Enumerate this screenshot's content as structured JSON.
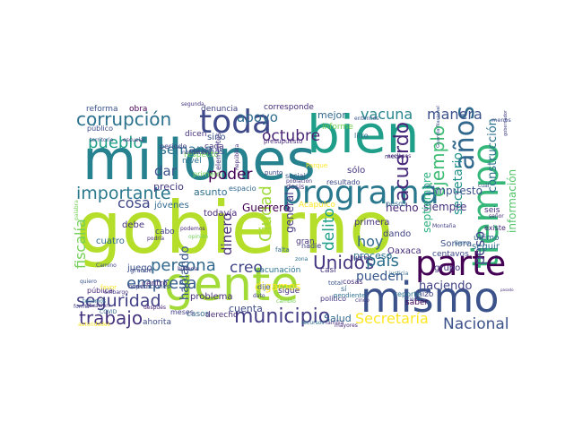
{
  "words": [
    {
      "text": "gobierno",
      "color": "#b5de2b"
    },
    {
      "text": "millones",
      "color": "#26828e"
    },
    {
      "text": "gente",
      "color": "#a2da37"
    },
    {
      "text": "mismo",
      "color": "#3b528b"
    },
    {
      "text": "bien",
      "color": "#1f9e89"
    },
    {
      "text": "programa",
      "color": "#2a788e"
    },
    {
      "text": "tiempo",
      "color": "#35b779"
    },
    {
      "text": "parte",
      "color": "#440154"
    },
    {
      "text": "toda",
      "color": "#3e4a89"
    },
    {
      "text": "años",
      "color": "#31688e"
    },
    {
      "text": "corrupción",
      "color": "#2c728e"
    },
    {
      "text": "municipio",
      "color": "#433e85"
    },
    {
      "text": "importante",
      "color": "#2a788e"
    },
    {
      "text": "acuerdo",
      "color": "#482878"
    },
    {
      "text": "ejemplo",
      "color": "#3dbc74"
    },
    {
      "text": "pueblo",
      "color": "#1f9e89"
    },
    {
      "text": "seguridad",
      "color": "#424086"
    },
    {
      "text": "persona",
      "color": "#31688e"
    },
    {
      "text": "trabajo",
      "color": "#46337e"
    },
    {
      "text": "empresa",
      "color": "#365c8d"
    },
    {
      "text": "Unidos",
      "color": "#453581"
    },
    {
      "text": "país",
      "color": "#2d708e"
    },
    {
      "text": "Secretaría",
      "color": "#fde725"
    },
    {
      "text": "Nacional",
      "color": "#3b528b"
    },
    {
      "text": "octubre",
      "color": "#482475"
    },
    {
      "text": "semana",
      "color": "#2e6e8e"
    },
    {
      "text": "vacuna",
      "color": "#25858e"
    },
    {
      "text": "manera",
      "color": "#3b528b"
    },
    {
      "text": "fiscalía",
      "color": "#73d056"
    },
    {
      "text": "Ciudad",
      "color": "#a0da39"
    },
    {
      "text": "poder",
      "color": "#440154"
    },
    {
      "text": "creo",
      "color": "#414487"
    },
    {
      "text": "dinero",
      "color": "#472d7b"
    },
    {
      "text": "cosa",
      "color": "#3f4788"
    },
    {
      "text": "delito",
      "color": "#1f9f88"
    },
    {
      "text": "hoy",
      "color": "#31688e"
    },
    {
      "text": "peso",
      "color": "#404688"
    },
    {
      "text": "secretario",
      "color": "#21918c"
    },
    {
      "text": "apoyo",
      "color": "#2f6c8e"
    },
    {
      "text": "dar",
      "color": "#3b528b"
    },
    {
      "text": "pueden",
      "color": "#38588c"
    },
    {
      "text": "general",
      "color": "#453581"
    },
    {
      "text": "hecho",
      "color": "#482878"
    },
    {
      "text": "proceso",
      "color": "#2d708e"
    },
    {
      "text": "haciendo",
      "color": "#414487"
    },
    {
      "text": "construcción",
      "color": "#2c728e"
    },
    {
      "text": "información",
      "color": "#52c569"
    },
    {
      "text": "impuesto",
      "color": "#3b528b"
    },
    {
      "text": "siempre",
      "color": "#46337e"
    },
    {
      "text": "septiembre",
      "color": "#29af7f"
    },
    {
      "text": "Guerrero",
      "color": "#440154"
    },
    {
      "text": "hablando",
      "color": "#38588c"
    },
    {
      "text": "digamos",
      "color": "#fde725"
    },
    {
      "text": "cuenta",
      "color": "#3e4a89"
    },
    {
      "text": "Salud",
      "color": "#31688e"
    },
    {
      "text": "problema",
      "color": "#472d7b"
    },
    {
      "text": "precio",
      "color": "#453581"
    },
    {
      "text": "asunto",
      "color": "#2e6e8e"
    },
    {
      "text": "muchas",
      "color": "#3b528b"
    },
    {
      "text": "todavía",
      "color": "#482878"
    },
    {
      "text": "jóvenes",
      "color": "#31688e"
    },
    {
      "text": "cabo",
      "color": "#424086"
    },
    {
      "text": "debe",
      "color": "#46337e"
    },
    {
      "text": "menos",
      "color": "#3e4a89"
    },
    {
      "text": "mejor",
      "color": "#31688e"
    },
    {
      "text": "reforma",
      "color": "#3b528b"
    },
    {
      "text": "obra",
      "color": "#440154"
    },
    {
      "text": "denuncia",
      "color": "#414487"
    },
    {
      "text": "corresponde",
      "color": "#472d7b"
    },
    {
      "text": "sino",
      "color": "#3b528b"
    },
    {
      "text": "cada",
      "color": "#453581"
    },
    {
      "text": "nivel",
      "color": "#2d708e"
    },
    {
      "text": "dicen",
      "color": "#46337e"
    },
    {
      "text": "público",
      "color": "#3e4a89"
    },
    {
      "text": "pública",
      "color": "#482878"
    },
    {
      "text": "cuatro",
      "color": "#31688e"
    },
    {
      "text": "Oaxaca",
      "color": "#472d7b"
    },
    {
      "text": "Sonora",
      "color": "#3b528b"
    },
    {
      "text": "grupo",
      "color": "#453581"
    },
    {
      "text": "seguir",
      "color": "#2e6e8e"
    },
    {
      "text": "primera",
      "color": "#46337e"
    },
    {
      "text": "dando",
      "color": "#414487"
    },
    {
      "text": "juego",
      "color": "#3b528b"
    },
    {
      "text": "centro",
      "color": "#482878"
    },
    {
      "text": "casos",
      "color": "#31688e"
    },
    {
      "text": "derecho",
      "color": "#472d7b"
    },
    {
      "text": "ahorita",
      "color": "#3e4a89"
    },
    {
      "text": "meses",
      "color": "#424086"
    },
    {
      "text": "vacunación",
      "color": "#2d708e"
    },
    {
      "text": "sigue",
      "color": "#453581"
    },
    {
      "text": "dije",
      "color": "#3b528b"
    },
    {
      "text": "gran",
      "color": "#46337e"
    },
    {
      "text": "Acapulco",
      "color": "#fde725"
    },
    {
      "text": "espacio",
      "color": "#31688e"
    },
    {
      "text": "dosis",
      "color": "#472d7b"
    },
    {
      "text": "resultado",
      "color": "#3e4a89"
    },
    {
      "text": "sólo",
      "color": "#453581"
    },
    {
      "text": "pesos",
      "color": "#2e6e8e"
    },
    {
      "text": "Guardia Nacional",
      "color": "#3b528b"
    },
    {
      "text": "saber",
      "color": "#440154"
    },
    {
      "text": "hizo",
      "color": "#414487"
    },
    {
      "text": "Juárez",
      "color": "#482878"
    },
    {
      "text": "sí",
      "color": "#31688e"
    },
    {
      "text": "cosas",
      "color": "#472d7b"
    },
    {
      "text": "político",
      "color": "#453581"
    },
    {
      "text": "total",
      "color": "#3b528b"
    },
    {
      "text": "casi",
      "color": "#46337e"
    },
    {
      "text": "nadie",
      "color": "#424086"
    },
    {
      "text": "centavos",
      "color": "#3e4a89"
    },
    {
      "text": "reporte",
      "color": "#2d708e"
    },
    {
      "text": "existe",
      "color": "#482878"
    },
    {
      "text": "último",
      "color": "#31688e"
    },
    {
      "text": "seis",
      "color": "#472d7b"
    },
    {
      "text": "segunda",
      "color": "#453581"
    },
    {
      "text": "territorio",
      "color": "#3b528b"
    },
    {
      "text": "escuela",
      "color": "#46337e"
    },
    {
      "text": "respecto",
      "color": "#73d056"
    },
    {
      "text": "noviembre",
      "color": "#414487"
    },
    {
      "text": "presupuesto",
      "color": "#482878"
    },
    {
      "text": "informe",
      "color": "#73d056"
    },
    {
      "text": "litro",
      "color": "#31688e"
    },
    {
      "text": "periodo",
      "color": "#424086"
    },
    {
      "text": "primero",
      "color": "#73d056"
    },
    {
      "text": "punto",
      "color": "#3e4a89"
    },
    {
      "text": "República",
      "color": "#472d7b"
    },
    {
      "text": "elementos",
      "color": "#453581"
    },
    {
      "text": "Parque",
      "color": "#fde725"
    },
    {
      "text": "social",
      "color": "#3b528b"
    },
    {
      "text": "población",
      "color": "#46337e"
    },
    {
      "text": "zona",
      "color": "#2d708e"
    },
    {
      "text": "falta",
      "color": "#31688e"
    },
    {
      "text": "podemos",
      "color": "#482878"
    },
    {
      "text": "opinión",
      "color": "#73d056"
    },
    {
      "text": "dato",
      "color": "#424086"
    },
    {
      "text": "cambio",
      "color": "#73d056"
    },
    {
      "text": "grande",
      "color": "#3e4a89"
    },
    {
      "text": "historia",
      "color": "#472d7b"
    },
    {
      "text": "embargo",
      "color": "#453581"
    },
    {
      "text": "quiero",
      "color": "#3b528b"
    },
    {
      "text": "situación",
      "color": "#46337e"
    },
    {
      "text": "tenemos",
      "color": "#2d708e"
    },
    {
      "text": "COVID",
      "color": "#31688e"
    },
    {
      "text": "después",
      "color": "#482878"
    },
    {
      "text": "forma",
      "color": "#424086"
    },
    {
      "text": "favor",
      "color": "#fde725"
    },
    {
      "text": "Camino",
      "color": "#3e4a89"
    },
    {
      "text": "podría",
      "color": "#472d7b"
    },
    {
      "text": "nuevo",
      "color": "#453581"
    },
    {
      "text": "operaciones",
      "color": "#3b528b"
    },
    {
      "text": "pendiente",
      "color": "#2d708e"
    },
    {
      "text": "cinco",
      "color": "#46337e"
    },
    {
      "text": "mayores",
      "color": "#482878"
    },
    {
      "text": "Montaña",
      "color": "#424086"
    },
    {
      "text": "llamo",
      "color": "#31688e"
    },
    {
      "text": "señor",
      "color": "#472d7b"
    },
    {
      "text": "cuál",
      "color": "#3e4a89"
    },
    {
      "text": "medio",
      "color": "#453581"
    },
    {
      "text": "entonces",
      "color": "#3b528b"
    },
    {
      "text": "autoridades",
      "color": "#fde725"
    },
    {
      "text": "familia",
      "color": "#46337e"
    },
    {
      "text": "recursos",
      "color": "#2d708e"
    },
    {
      "text": "justicia",
      "color": "#31688e"
    },
    {
      "text": "acciones",
      "color": "#482878"
    },
    {
      "text": "palabra",
      "color": "#73d056"
    },
    {
      "text": "gobernador",
      "color": "#424086"
    },
    {
      "text": "pasado",
      "color": "#472d7b"
    },
    {
      "text": "tiene",
      "color": "#3e4a89"
    }
  ]
}
